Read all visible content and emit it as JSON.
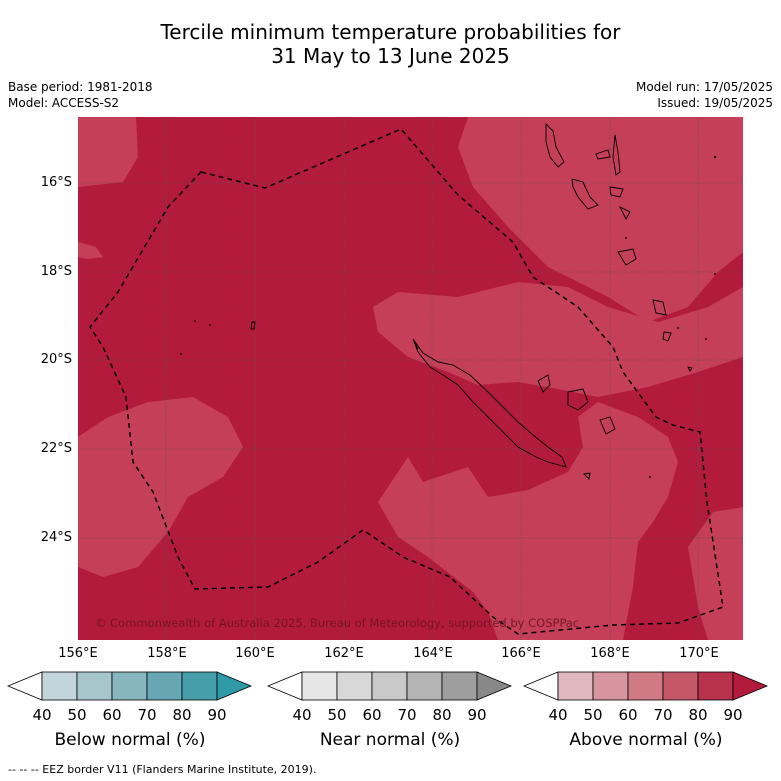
{
  "header": {
    "title_line1": "Tercile minimum temperature probabilities for",
    "title_line2": "31 May to 13 June 2025",
    "base_period": "Base period: 1981-2018",
    "model": "Model: ACCESS-S2",
    "model_run": "Model run: 17/05/2025",
    "issued": "Issued: 19/05/2025"
  },
  "map": {
    "lat_labels": [
      "16°S",
      "18°S",
      "20°S",
      "22°S",
      "24°S"
    ],
    "lon_labels": [
      "156°E",
      "158°E",
      "160°E",
      "162°E",
      "164°E",
      "166°E",
      "168°E",
      "170°E"
    ],
    "copyright": "© Commonwealth of Australia 2025, Bureau of Meteorology, supported by COSPPac",
    "region_category": "Above normal",
    "colors": {
      "above_80_90": "#b31b3c",
      "above_70_80": "#c53f58",
      "coast": "#000000",
      "grid": "#555555"
    }
  },
  "legend": {
    "ticks": [
      "40",
      "50",
      "60",
      "70",
      "80",
      "90"
    ],
    "below": {
      "title": "Below normal (%)",
      "colors": [
        "#ffffff",
        "#c1d5da",
        "#a6c6cb",
        "#88b6bf",
        "#67a7b3",
        "#459ea9",
        "#2e9aa8"
      ]
    },
    "near": {
      "title": "Near normal (%)",
      "colors": [
        "#ffffff",
        "#e6e6e6",
        "#d8d8d8",
        "#c9c9c9",
        "#b4b4b4",
        "#9e9e9e",
        "#888888"
      ]
    },
    "above": {
      "title": "Above normal (%)",
      "colors": [
        "#ffffff",
        "#e0b8c0",
        "#d7959f",
        "#cf7a84",
        "#c45867",
        "#b8324c",
        "#b31b3c"
      ]
    }
  },
  "footnote": "--  --  -- EEZ border V11 (Flanders Marine Institute, 2019)."
}
